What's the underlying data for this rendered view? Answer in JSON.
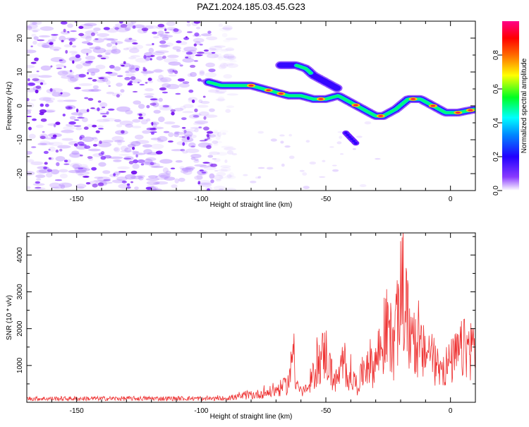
{
  "title": "PAZ1.2024.185.03.45.G23",
  "chart_data": [
    {
      "type": "heatmap",
      "xlabel": "Height of straight line (km)",
      "ylabel": "Frequency (Hz)",
      "xlim": [
        -170,
        10
      ],
      "ylim": [
        -25,
        25
      ],
      "x_ticks": [
        -150,
        -100,
        -50,
        0
      ],
      "y_ticks": [
        -20,
        -10,
        0,
        10,
        20
      ],
      "colorbar": {
        "label": "Normalized spectral amplitude",
        "range": [
          0,
          1
        ],
        "ticks": [
          0.0,
          0.2,
          0.4,
          0.6,
          0.8
        ],
        "colormap": "hsv-reversed",
        "colors": [
          "#ffffff",
          "#6a00ff",
          "#0033ff",
          "#00ffff",
          "#00ff00",
          "#ffff00",
          "#ff0000",
          "#ff0080"
        ]
      },
      "ridge": {
        "x": [
          -97,
          -92,
          -85,
          -80,
          -75,
          -70,
          -65,
          -60,
          -55,
          -50,
          -45,
          -40,
          -35,
          -30,
          -27,
          -22,
          -17,
          -12,
          -7,
          -2,
          3,
          10
        ],
        "y": [
          7,
          6,
          6,
          6,
          5,
          4,
          3,
          3,
          2,
          2,
          3,
          1,
          -1,
          -3,
          -3,
          -1,
          2,
          2,
          0,
          -2,
          -2,
          -1
        ]
      },
      "side_branch": {
        "x": [
          -68,
          -62,
          -58,
          -55,
          -50,
          -45
        ],
        "y": [
          12,
          12,
          11,
          9,
          7,
          5
        ]
      },
      "isolated_blob": {
        "x": [
          -42,
          -38
        ],
        "y": [
          -8,
          -11
        ]
      },
      "noise_region_x": [
        -170,
        -95
      ],
      "noise_color": "#a060ff"
    },
    {
      "type": "line",
      "xlabel": "Height of straight line (km)",
      "ylabel": "SNR (10 * v/v)",
      "xlim": [
        -170,
        10
      ],
      "ylim": [
        0,
        4600
      ],
      "x_ticks": [
        -150,
        -100,
        -50,
        0
      ],
      "y_ticks": [
        1000,
        2000,
        3000,
        4000
      ],
      "line_color": "#ee3333",
      "envelope": {
        "x": [
          -170,
          -100,
          -90,
          -80,
          -72,
          -66,
          -64,
          -63,
          -62,
          -60,
          -57,
          -54,
          -52,
          -50,
          -48,
          -46,
          -43,
          -40,
          -37,
          -35,
          -33,
          -31,
          -29,
          -27,
          -25,
          -23,
          -21,
          -20,
          -19,
          -17,
          -15,
          -13,
          -11,
          -9,
          -7,
          -5,
          -3,
          0,
          5,
          10
        ],
        "y": [
          120,
          130,
          180,
          300,
          450,
          700,
          1200,
          2900,
          900,
          450,
          500,
          1500,
          1900,
          2200,
          1300,
          900,
          1500,
          1100,
          700,
          1400,
          1900,
          1500,
          2100,
          2500,
          3400,
          2200,
          3600,
          4500,
          4400,
          3300,
          2700,
          2400,
          2100,
          2300,
          1800,
          1600,
          1500,
          1700,
          2300,
          2400
        ]
      }
    }
  ]
}
